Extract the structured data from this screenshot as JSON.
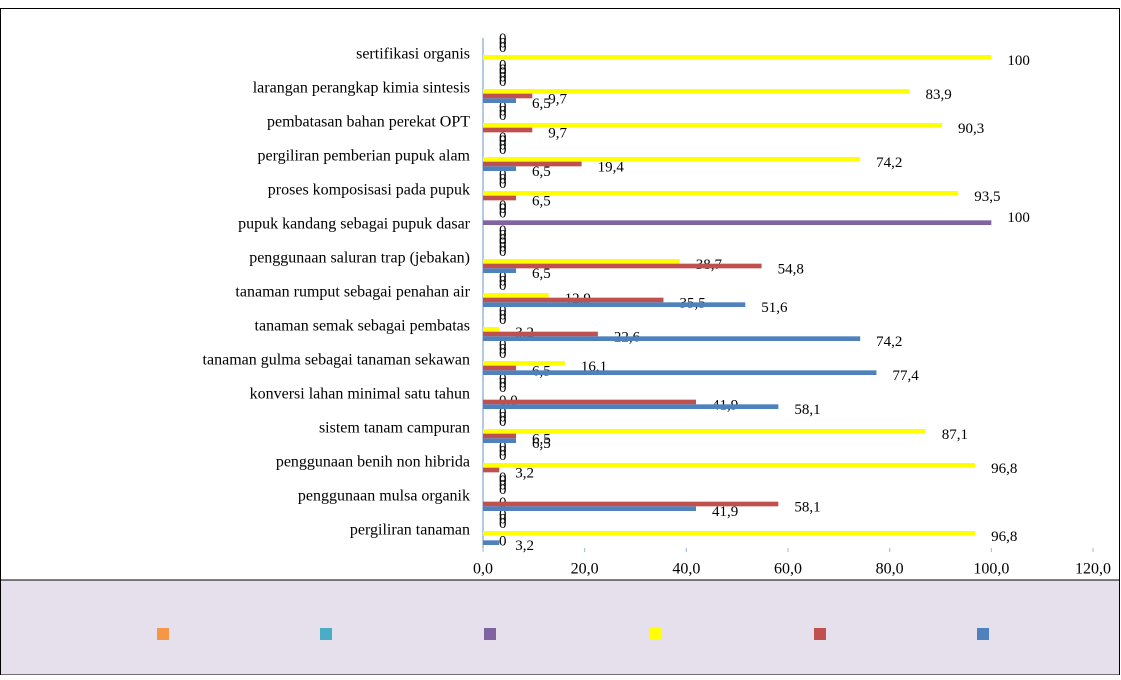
{
  "chart_data": {
    "type": "bar",
    "orientation": "horizontal",
    "categories": [
      "pergiliran tanaman",
      "penggunaan mulsa organik",
      "penggunaan benih non hibrida",
      "sistem tanam campuran",
      "konversi lahan minimal satu tahun",
      "tanaman gulma sebagai tanaman sekawan",
      "tanaman semak sebagai pembatas",
      "tanaman rumput sebagai penahan air",
      "penggunaan saluran  trap (jebakan)",
      "pupuk kandang sebagai pupuk dasar",
      "proses komposisasi pada pupuk",
      "pergiliran pemberian pupuk alam",
      "pembatasan bahan perekat OPT",
      "larangan perangkap kimia sintesis",
      "sertifikasi organis"
    ],
    "series": [
      {
        "color": "#f79646",
        "values": [
          0,
          0,
          0,
          0,
          0,
          0,
          0,
          0,
          0,
          0,
          0,
          0,
          0,
          0,
          0
        ],
        "value_labels": [
          "0",
          "0",
          "0",
          "0",
          "0",
          "0",
          "0",
          "0",
          "0",
          "0",
          "0",
          "0",
          "0",
          "0",
          "0"
        ]
      },
      {
        "color": "#4bacc6",
        "values": [
          0,
          0,
          0,
          0,
          0,
          0,
          0,
          0,
          0,
          0,
          0,
          0,
          0,
          0,
          0
        ],
        "value_labels": [
          "0",
          "0",
          "0",
          "0",
          "0",
          "0",
          "0",
          "0",
          "0",
          "0",
          "0",
          "0",
          "0",
          "0",
          "0"
        ]
      },
      {
        "color": "#8064a2",
        "values": [
          0,
          0,
          0,
          0,
          0,
          0,
          0,
          0,
          0,
          100,
          0,
          0,
          0,
          0,
          0
        ],
        "value_labels": [
          "0",
          "0",
          "0",
          "0",
          "0",
          "0",
          "0",
          "0",
          "0",
          "100",
          "0",
          "0",
          "0",
          "0",
          "0"
        ]
      },
      {
        "color": "#ffff00",
        "values": [
          96.8,
          0,
          96.8,
          87.1,
          0,
          16.1,
          3.2,
          12.9,
          38.7,
          0,
          93.5,
          74.2,
          90.3,
          83.9,
          100
        ],
        "value_labels": [
          "96,8",
          "0",
          "96,8",
          "87,1",
          "0,0",
          "16,1",
          "3,2",
          "12,9",
          "38,7",
          "0",
          "93,5",
          "74,2",
          "90,3",
          "83,9",
          "100"
        ]
      },
      {
        "color": "#c0504d",
        "values": [
          0,
          58.1,
          3.2,
          6.5,
          41.9,
          6.5,
          22.6,
          35.5,
          54.8,
          0,
          6.5,
          19.4,
          9.7,
          9.7,
          0
        ],
        "value_labels": [
          "0",
          "58,1",
          "3,2",
          "6,5",
          "41,9",
          "6,5",
          "22,6",
          "35,5",
          "54,8",
          "0",
          "6,5",
          "19,4",
          "9,7",
          "9,7",
          "0"
        ]
      },
      {
        "color": "#4f81bd",
        "values": [
          3.2,
          41.9,
          0,
          6.5,
          58.1,
          77.4,
          74.2,
          51.6,
          6.5,
          0,
          0,
          6.5,
          0,
          6.5,
          0
        ],
        "value_labels": [
          "3,2",
          "41,9",
          "0",
          "6,5",
          "58,1",
          "77,4",
          "74,2",
          "51,6",
          "6,5",
          "0",
          "0",
          "6,5",
          "0",
          "6,5",
          "0"
        ]
      }
    ],
    "xlim": [
      0,
      120
    ],
    "xticks": [
      {
        "value": 0,
        "label": "0,0"
      },
      {
        "value": 20,
        "label": "20,0"
      },
      {
        "value": 40,
        "label": "40,0"
      },
      {
        "value": 60,
        "label": "60,0"
      },
      {
        "value": 80,
        "label": "80,0"
      },
      {
        "value": 100,
        "label": "100,0"
      },
      {
        "value": 120,
        "label": "120,0"
      }
    ],
    "legend": "bottom"
  }
}
